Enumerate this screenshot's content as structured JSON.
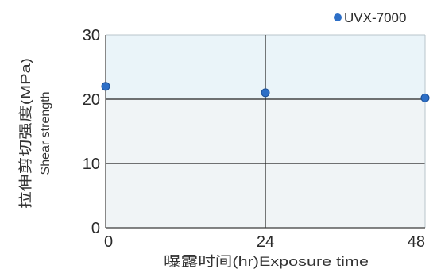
{
  "chart_data": {
    "type": "scatter",
    "x_ticks": [
      "0",
      "24",
      "48"
    ],
    "y_ticks": [
      "0",
      "10",
      "20",
      "30"
    ],
    "xlim": [
      0,
      48
    ],
    "ylim": [
      0,
      30
    ],
    "xlabel": "曝露时间(hr)Exposure time",
    "ylabel": "拉伸剪切强度(MPa)",
    "ylabel_en": "Shear strength",
    "grid": true,
    "legend_position": "top-right",
    "series": [
      {
        "name": "UVX-7000",
        "color": "#2d6fc7",
        "x": [
          0,
          24,
          48
        ],
        "y": [
          22,
          21,
          20.2
        ]
      }
    ],
    "colors": {
      "plot_fill_upper": "#eaf4f9",
      "plot_fill_lower": "#f0f4f6",
      "gridline": "#222222",
      "axis": "#3a3a3a"
    }
  }
}
